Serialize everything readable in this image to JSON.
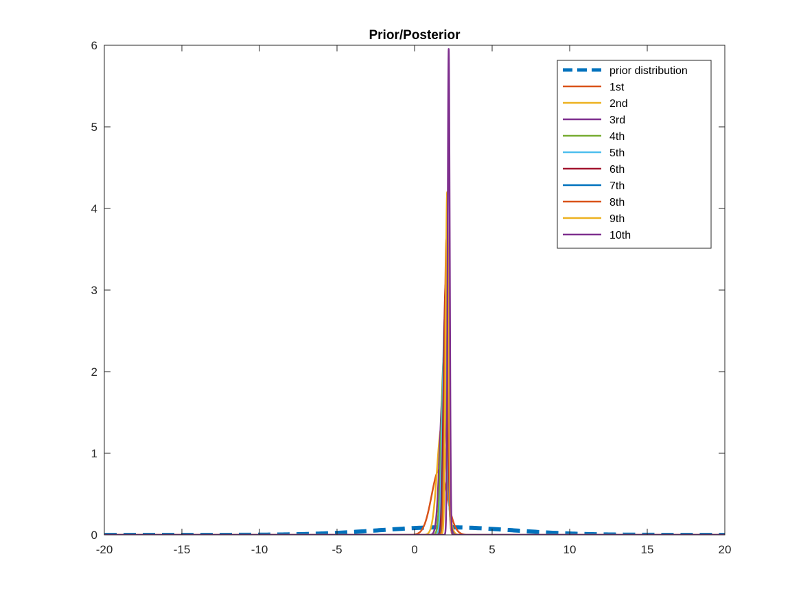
{
  "chart_data": {
    "type": "line",
    "title": "Prior/Posterior",
    "xlabel": "",
    "ylabel": "",
    "xlim": [
      -20,
      20
    ],
    "ylim": [
      0,
      6
    ],
    "xticks": [
      -20,
      -15,
      -10,
      -5,
      0,
      5,
      10,
      15,
      20
    ],
    "yticks": [
      0,
      1,
      2,
      3,
      4,
      5,
      6
    ],
    "grid": false,
    "legend_position": "top-right",
    "series": [
      {
        "name": "prior distribution",
        "color": "#0072BD",
        "style": "dashed",
        "curve": "normal",
        "mean": 2,
        "sd": 4.3
      },
      {
        "name": "1st",
        "color": "#D95319",
        "style": "solid",
        "curve": "normal",
        "mean": 1.6,
        "sd": 0.5
      },
      {
        "name": "2nd",
        "color": "#EDB120",
        "style": "solid",
        "curve": "normal",
        "mean": 1.75,
        "sd": 0.3
      },
      {
        "name": "3rd",
        "color": "#7E2F8E",
        "style": "solid",
        "curve": "normal",
        "mean": 1.85,
        "sd": 0.22
      },
      {
        "name": "4th",
        "color": "#77AC30",
        "style": "solid",
        "curve": "normal",
        "mean": 1.9,
        "sd": 0.18
      },
      {
        "name": "5th",
        "color": "#4DBEEE",
        "style": "solid",
        "curve": "normal",
        "mean": 1.95,
        "sd": 0.15
      },
      {
        "name": "6th",
        "color": "#A2142F",
        "style": "solid",
        "curve": "normal",
        "mean": 2.0,
        "sd": 0.13
      },
      {
        "name": "7th",
        "color": "#0072BD",
        "style": "solid",
        "curve": "normal",
        "mean": 2.05,
        "sd": 0.12
      },
      {
        "name": "8th",
        "color": "#D95319",
        "style": "solid",
        "curve": "normal",
        "mean": 2.05,
        "sd": 0.11
      },
      {
        "name": "9th",
        "color": "#EDB120",
        "style": "solid",
        "curve": "normal",
        "mean": 2.1,
        "sd": 0.095
      },
      {
        "name": "10th",
        "color": "#7E2F8E",
        "style": "solid",
        "curve": "normal",
        "mean": 2.2,
        "sd": 0.067
      }
    ]
  }
}
